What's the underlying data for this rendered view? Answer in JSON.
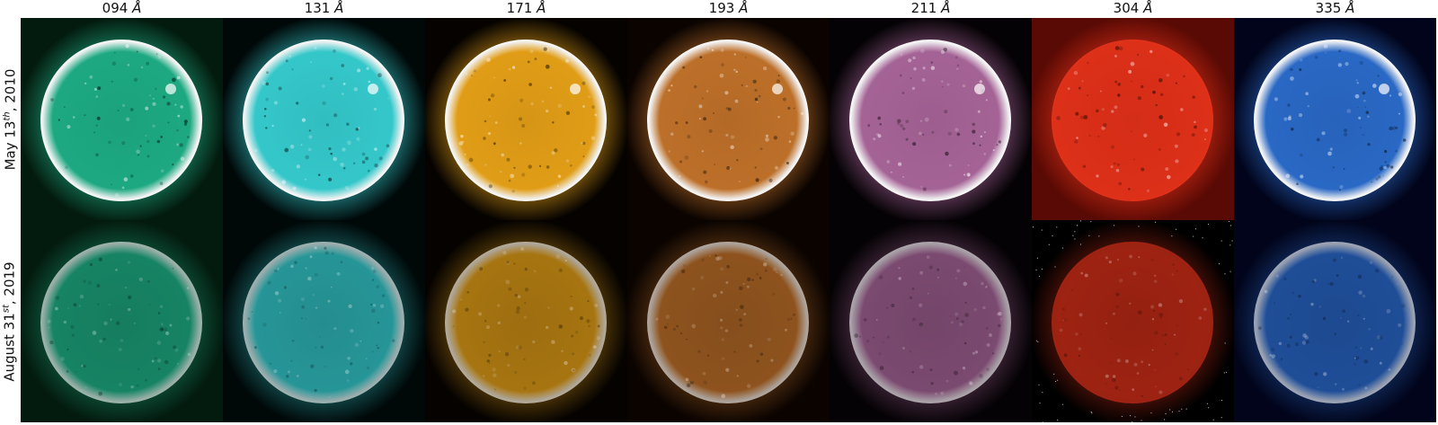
{
  "columns": [
    {
      "label": "094",
      "unit": "Å",
      "color": "#1fb38a",
      "bg": "#031a0e"
    },
    {
      "label": "131",
      "unit": "Å",
      "color": "#38d5d8",
      "bg": "#000808"
    },
    {
      "label": "171",
      "unit": "Å",
      "color": "#f0a818",
      "bg": "#050200"
    },
    {
      "label": "193",
      "unit": "Å",
      "color": "#c9772c",
      "bg": "#0a0300"
    },
    {
      "label": "211",
      "unit": "Å",
      "color": "#b06aa0",
      "bg": "#050205"
    },
    {
      "label": "304",
      "unit": "Å",
      "color": "#e4321a",
      "bg": "#000000"
    },
    {
      "label": "335",
      "unit": "Å",
      "color": "#2c6fd0",
      "bg": "#01041a"
    }
  ],
  "rows": [
    {
      "prefix": "May 13",
      "suffix": "th",
      "year": ", 2010",
      "intensity": 1.0
    },
    {
      "prefix": "August 31",
      "suffix": "st",
      "year": ", 2019",
      "intensity": 0.62
    }
  ]
}
